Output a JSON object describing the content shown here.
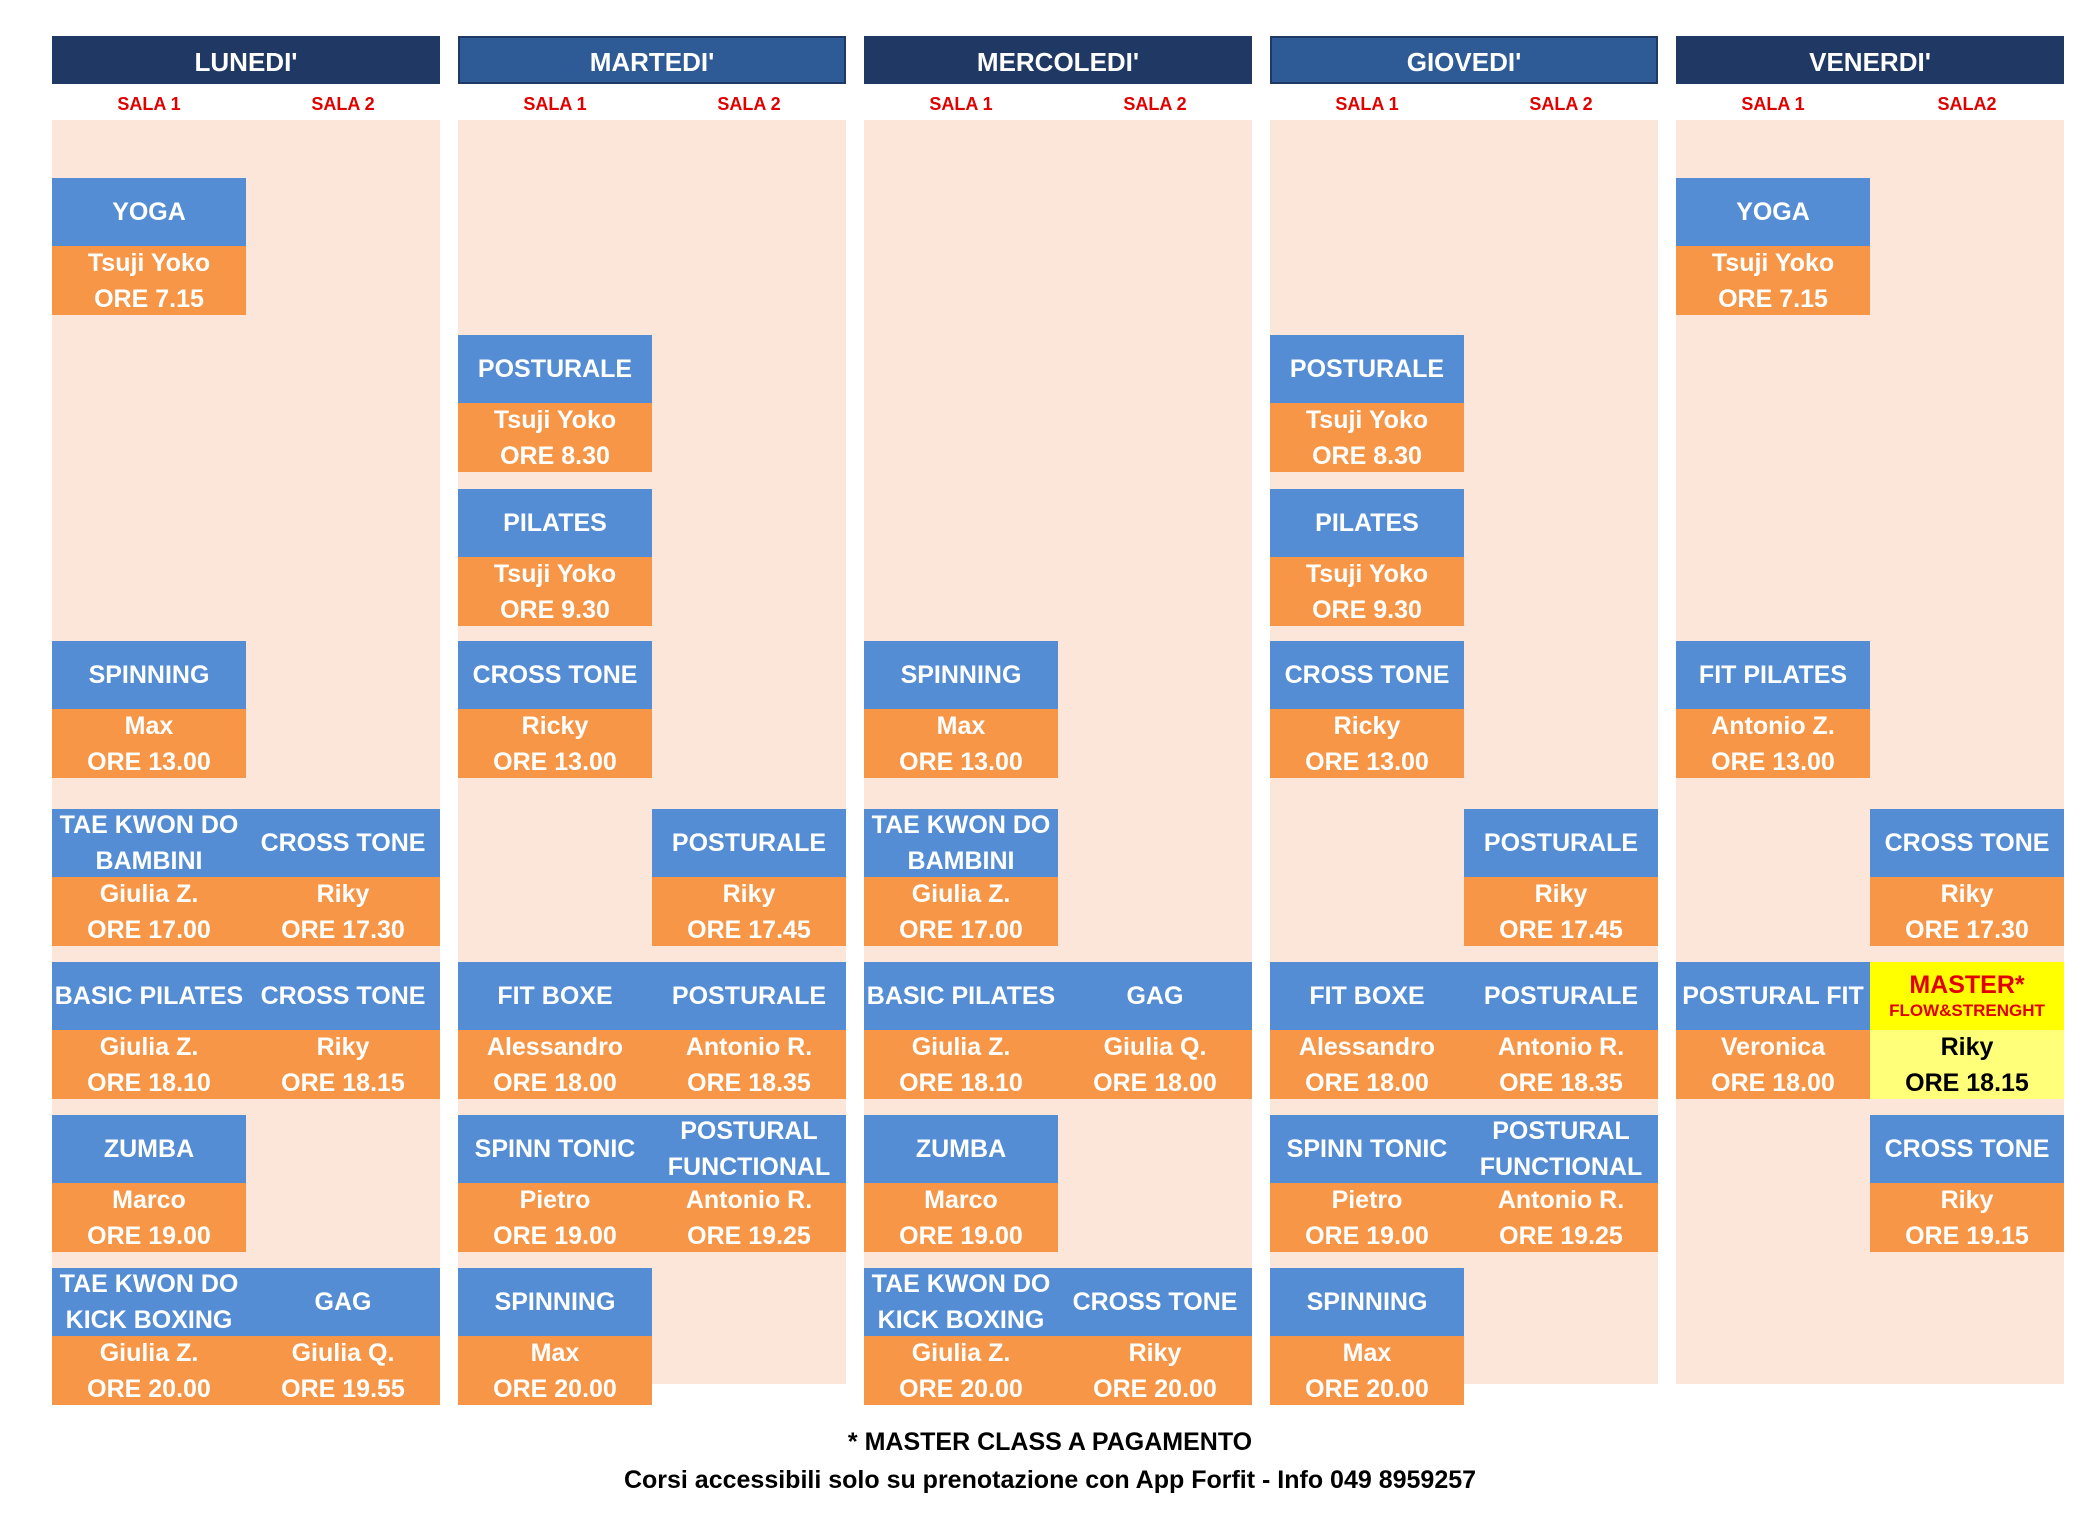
{
  "days": [
    {
      "label": "LUNEDI'",
      "sala1": "SALA 1",
      "sala2": "SALA 2"
    },
    {
      "label": "MARTEDI'",
      "sala1": "SALA 1",
      "sala2": "SALA 2"
    },
    {
      "label": "MERCOLEDI'",
      "sala1": "SALA 1",
      "sala2": "SALA 2"
    },
    {
      "label": "GIOVEDI'",
      "sala1": "SALA 1",
      "sala2": "SALA 2"
    },
    {
      "label": "VENERDI'",
      "sala1": "SALA 1",
      "sala2": "SALA2"
    }
  ],
  "classes": [
    {
      "day": 0,
      "sala": 1,
      "slot": 0,
      "name": "YOGA",
      "instructor": "Tsuji Yoko",
      "time": "ORE 7.15"
    },
    {
      "day": 4,
      "sala": 1,
      "slot": 0,
      "name": "YOGA",
      "instructor": "Tsuji Yoko",
      "time": "ORE 7.15"
    },
    {
      "day": 1,
      "sala": 1,
      "slot": 1,
      "name": "POSTURALE",
      "instructor": "Tsuji Yoko",
      "time": "ORE 8.30"
    },
    {
      "day": 3,
      "sala": 1,
      "slot": 1,
      "name": "POSTURALE",
      "instructor": "Tsuji Yoko",
      "time": "ORE 8.30"
    },
    {
      "day": 1,
      "sala": 1,
      "slot": 2,
      "name": "PILATES",
      "instructor": "Tsuji Yoko",
      "time": "ORE 9.30"
    },
    {
      "day": 3,
      "sala": 1,
      "slot": 2,
      "name": "PILATES",
      "instructor": "Tsuji Yoko",
      "time": "ORE 9.30"
    },
    {
      "day": 0,
      "sala": 1,
      "slot": 3,
      "name": "SPINNING",
      "instructor": "Max",
      "time": "ORE 13.00"
    },
    {
      "day": 1,
      "sala": 1,
      "slot": 3,
      "name": "CROSS TONE",
      "instructor": "Ricky",
      "time": "ORE 13.00"
    },
    {
      "day": 2,
      "sala": 1,
      "slot": 3,
      "name": "SPINNING",
      "instructor": "Max",
      "time": "ORE 13.00"
    },
    {
      "day": 3,
      "sala": 1,
      "slot": 3,
      "name": "CROSS TONE",
      "instructor": "Ricky",
      "time": "ORE 13.00"
    },
    {
      "day": 4,
      "sala": 1,
      "slot": 3,
      "name": "FIT PILATES",
      "instructor": "Antonio Z.",
      "time": "ORE 13.00"
    },
    {
      "day": 0,
      "sala": 1,
      "slot": 4,
      "name": "TAE KWON DO\nBAMBINI",
      "instructor": "Giulia Z.",
      "time": "ORE 17.00"
    },
    {
      "day": 0,
      "sala": 2,
      "slot": 4,
      "name": "CROSS TONE",
      "instructor": "Riky",
      "time": "ORE 17.30"
    },
    {
      "day": 1,
      "sala": 2,
      "slot": 4,
      "name": "POSTURALE",
      "instructor": "Riky",
      "time": "ORE 17.45"
    },
    {
      "day": 2,
      "sala": 1,
      "slot": 4,
      "name": "TAE KWON DO\nBAMBINI",
      "instructor": "Giulia Z.",
      "time": "ORE 17.00"
    },
    {
      "day": 3,
      "sala": 2,
      "slot": 4,
      "name": "POSTURALE",
      "instructor": "Riky",
      "time": "ORE 17.45"
    },
    {
      "day": 4,
      "sala": 2,
      "slot": 4,
      "name": "CROSS TONE",
      "instructor": "Riky",
      "time": "ORE 17.30"
    },
    {
      "day": 0,
      "sala": 1,
      "slot": 5,
      "name": "BASIC PILATES",
      "instructor": "Giulia Z.",
      "time": "ORE 18.10"
    },
    {
      "day": 0,
      "sala": 2,
      "slot": 5,
      "name": "CROSS TONE",
      "instructor": "Riky",
      "time": "ORE 18.15"
    },
    {
      "day": 1,
      "sala": 1,
      "slot": 5,
      "name": "FIT BOXE",
      "instructor": "Alessandro",
      "time": "ORE 18.00"
    },
    {
      "day": 1,
      "sala": 2,
      "slot": 5,
      "name": "POSTURALE",
      "instructor": "Antonio R.",
      "time": "ORE 18.35"
    },
    {
      "day": 2,
      "sala": 1,
      "slot": 5,
      "name": "BASIC PILATES",
      "instructor": "Giulia Z.",
      "time": "ORE 18.10"
    },
    {
      "day": 2,
      "sala": 2,
      "slot": 5,
      "name": "GAG",
      "instructor": "Giulia Q.",
      "time": "ORE 18.00"
    },
    {
      "day": 3,
      "sala": 1,
      "slot": 5,
      "name": "FIT BOXE",
      "instructor": "Alessandro",
      "time": "ORE 18.00"
    },
    {
      "day": 3,
      "sala": 2,
      "slot": 5,
      "name": "POSTURALE",
      "instructor": "Antonio R.",
      "time": "ORE 18.35"
    },
    {
      "day": 4,
      "sala": 1,
      "slot": 5,
      "name": "POSTURAL FIT",
      "instructor": "Veronica",
      "time": "ORE 18.00"
    },
    {
      "day": 4,
      "sala": 2,
      "slot": 5,
      "name": "MASTER*",
      "subname": "FLOW&STRENGHT",
      "instructor": "Riky",
      "time": "ORE 18.15",
      "master": true
    },
    {
      "day": 0,
      "sala": 1,
      "slot": 6,
      "name": "ZUMBA",
      "instructor": "Marco",
      "time": "ORE 19.00"
    },
    {
      "day": 1,
      "sala": 1,
      "slot": 6,
      "name": "SPINN TONIC",
      "instructor": "Pietro",
      "time": "ORE 19.00"
    },
    {
      "day": 1,
      "sala": 2,
      "slot": 6,
      "name": "POSTURAL\nFUNCTIONAL",
      "instructor": "Antonio R.",
      "time": "ORE 19.25"
    },
    {
      "day": 2,
      "sala": 1,
      "slot": 6,
      "name": "ZUMBA",
      "instructor": "Marco",
      "time": "ORE 19.00"
    },
    {
      "day": 3,
      "sala": 1,
      "slot": 6,
      "name": "SPINN TONIC",
      "instructor": "Pietro",
      "time": "ORE 19.00"
    },
    {
      "day": 3,
      "sala": 2,
      "slot": 6,
      "name": "POSTURAL\nFUNCTIONAL",
      "instructor": "Antonio R.",
      "time": "ORE 19.25"
    },
    {
      "day": 4,
      "sala": 2,
      "slot": 6,
      "name": "CROSS TONE",
      "instructor": "Riky",
      "time": "ORE 19.15"
    },
    {
      "day": 0,
      "sala": 1,
      "slot": 7,
      "name": "TAE KWON DO\nKICK BOXING",
      "instructor": "Giulia Z.",
      "time": "ORE 20.00"
    },
    {
      "day": 0,
      "sala": 2,
      "slot": 7,
      "name": "GAG",
      "instructor": "Giulia Q.",
      "time": "ORE 19.55"
    },
    {
      "day": 1,
      "sala": 1,
      "slot": 7,
      "name": "SPINNING",
      "instructor": "Max",
      "time": "ORE 20.00"
    },
    {
      "day": 2,
      "sala": 1,
      "slot": 7,
      "name": "TAE KWON DO\nKICK BOXING",
      "instructor": "Giulia Z.",
      "time": "ORE 20.00"
    },
    {
      "day": 2,
      "sala": 2,
      "slot": 7,
      "name": "CROSS TONE",
      "instructor": "Riky",
      "time": "ORE 20.00"
    },
    {
      "day": 3,
      "sala": 1,
      "slot": 7,
      "name": "SPINNING",
      "instructor": "Max",
      "time": "ORE 20.00"
    }
  ],
  "footer": {
    "line1": "* MASTER CLASS A PAGAMENTO",
    "line2": "Corsi accessibili solo su prenotazione con App Forfit - Info 049 8959257"
  },
  "colors": {
    "header_dark": "#1f3864",
    "header_light": "#2e5b96",
    "sala_text": "#e00000",
    "column_bg": "#fce6d9",
    "class_name_bg": "#548dd4",
    "class_info_bg": "#f79646",
    "master_name_bg": "#ffff00",
    "master_info_bg": "#ffff79"
  }
}
